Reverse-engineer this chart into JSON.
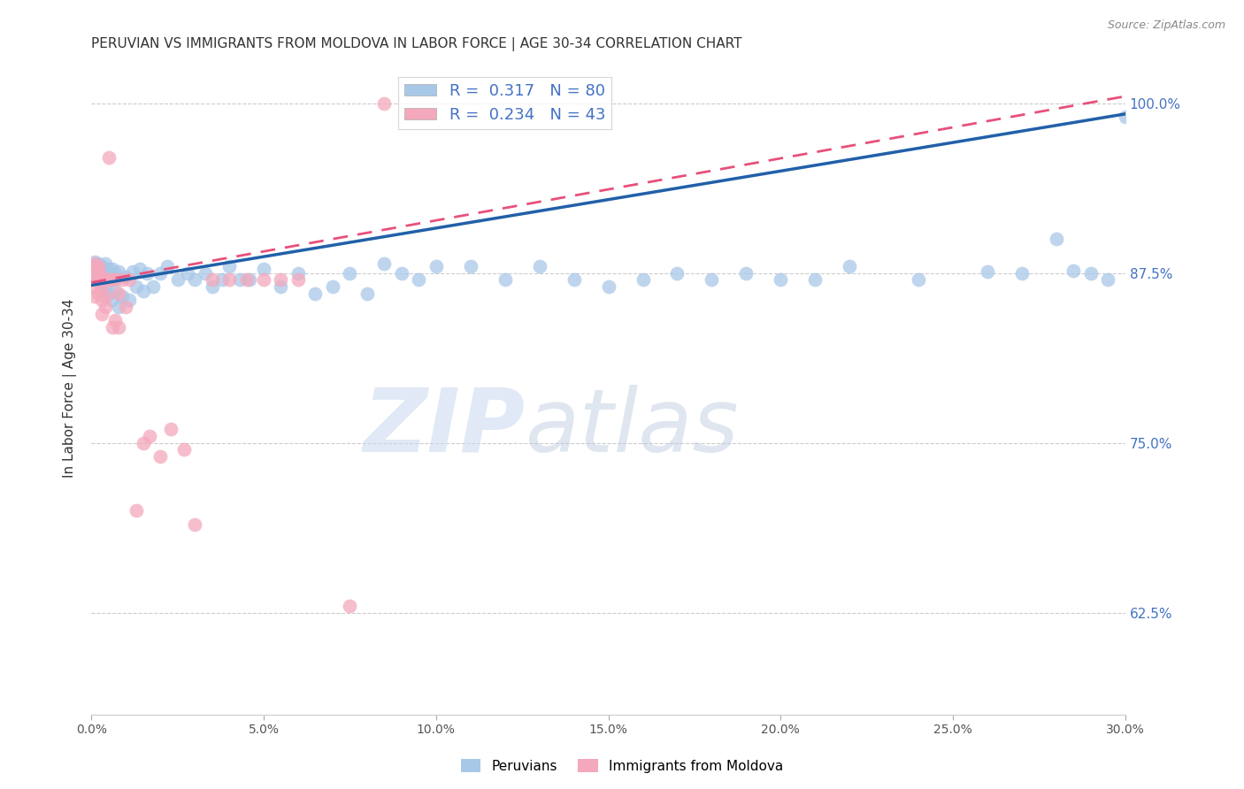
{
  "title": "PERUVIAN VS IMMIGRANTS FROM MOLDOVA IN LABOR FORCE | AGE 30-34 CORRELATION CHART",
  "source": "Source: ZipAtlas.com",
  "ylabel": "In Labor Force | Age 30-34",
  "xlim": [
    0.0,
    0.3
  ],
  "ylim": [
    0.55,
    1.03
  ],
  "xtick_labels": [
    "0.0%",
    "5.0%",
    "10.0%",
    "15.0%",
    "20.0%",
    "25.0%",
    "30.0%"
  ],
  "xtick_vals": [
    0.0,
    0.05,
    0.1,
    0.15,
    0.2,
    0.25,
    0.3
  ],
  "ytick_labels": [
    "62.5%",
    "75.0%",
    "87.5%",
    "100.0%"
  ],
  "ytick_vals": [
    0.625,
    0.75,
    0.875,
    1.0
  ],
  "blue_scatter_x": [
    0.001,
    0.001,
    0.001,
    0.001,
    0.001,
    0.002,
    0.002,
    0.002,
    0.002,
    0.002,
    0.003,
    0.003,
    0.003,
    0.003,
    0.003,
    0.004,
    0.004,
    0.004,
    0.004,
    0.005,
    0.005,
    0.005,
    0.006,
    0.006,
    0.006,
    0.007,
    0.007,
    0.008,
    0.008,
    0.009,
    0.01,
    0.011,
    0.012,
    0.013,
    0.014,
    0.015,
    0.016,
    0.018,
    0.02,
    0.022,
    0.025,
    0.028,
    0.03,
    0.033,
    0.035,
    0.038,
    0.04,
    0.043,
    0.046,
    0.05,
    0.055,
    0.06,
    0.065,
    0.07,
    0.075,
    0.08,
    0.085,
    0.09,
    0.095,
    0.1,
    0.11,
    0.12,
    0.13,
    0.14,
    0.15,
    0.16,
    0.17,
    0.18,
    0.19,
    0.2,
    0.21,
    0.22,
    0.24,
    0.26,
    0.27,
    0.28,
    0.285,
    0.29,
    0.295,
    0.3
  ],
  "blue_scatter_y": [
    0.878,
    0.883,
    0.872,
    0.876,
    0.88,
    0.874,
    0.878,
    0.882,
    0.87,
    0.876,
    0.868,
    0.872,
    0.876,
    0.88,
    0.87,
    0.865,
    0.872,
    0.878,
    0.882,
    0.86,
    0.872,
    0.878,
    0.855,
    0.87,
    0.878,
    0.862,
    0.875,
    0.85,
    0.876,
    0.858,
    0.872,
    0.855,
    0.876,
    0.865,
    0.878,
    0.862,
    0.875,
    0.865,
    0.875,
    0.88,
    0.87,
    0.875,
    0.87,
    0.875,
    0.865,
    0.87,
    0.88,
    0.87,
    0.87,
    0.878,
    0.865,
    0.875,
    0.86,
    0.865,
    0.875,
    0.86,
    0.882,
    0.875,
    0.87,
    0.88,
    0.88,
    0.87,
    0.88,
    0.87,
    0.865,
    0.87,
    0.875,
    0.87,
    0.875,
    0.87,
    0.87,
    0.88,
    0.87,
    0.876,
    0.875,
    0.9,
    0.877,
    0.875,
    0.87,
    0.99
  ],
  "pink_scatter_x": [
    0.001,
    0.001,
    0.001,
    0.001,
    0.001,
    0.001,
    0.002,
    0.002,
    0.002,
    0.002,
    0.003,
    0.003,
    0.003,
    0.003,
    0.004,
    0.004,
    0.004,
    0.005,
    0.005,
    0.006,
    0.006,
    0.007,
    0.007,
    0.008,
    0.008,
    0.009,
    0.01,
    0.011,
    0.013,
    0.015,
    0.017,
    0.02,
    0.023,
    0.027,
    0.03,
    0.035,
    0.04,
    0.045,
    0.05,
    0.055,
    0.06,
    0.075,
    0.085
  ],
  "pink_scatter_y": [
    0.87,
    0.875,
    0.88,
    0.882,
    0.858,
    0.865,
    0.86,
    0.87,
    0.876,
    0.88,
    0.855,
    0.865,
    0.872,
    0.845,
    0.85,
    0.858,
    0.87,
    0.96,
    0.87,
    0.835,
    0.87,
    0.84,
    0.87,
    0.835,
    0.86,
    0.87,
    0.85,
    0.87,
    0.7,
    0.75,
    0.755,
    0.74,
    0.76,
    0.745,
    0.69,
    0.87,
    0.87,
    0.87,
    0.87,
    0.87,
    0.87,
    0.63,
    1.0
  ],
  "blue_R": 0.317,
  "blue_N": 80,
  "pink_R": 0.234,
  "pink_N": 43,
  "blue_color": "#a8c8e8",
  "pink_color": "#f4a8bc",
  "blue_line_color": "#2160a8",
  "pink_line_color": "#e8507a",
  "watermark_zip": "ZIP",
  "watermark_atlas": "atlas",
  "legend_labels": [
    "Peruvians",
    "Immigrants from Moldova"
  ],
  "ytick_color": "#4472c4",
  "title_fontsize": 11,
  "axis_label_fontsize": 11,
  "source_text": "Source: ZipAtlas.com"
}
